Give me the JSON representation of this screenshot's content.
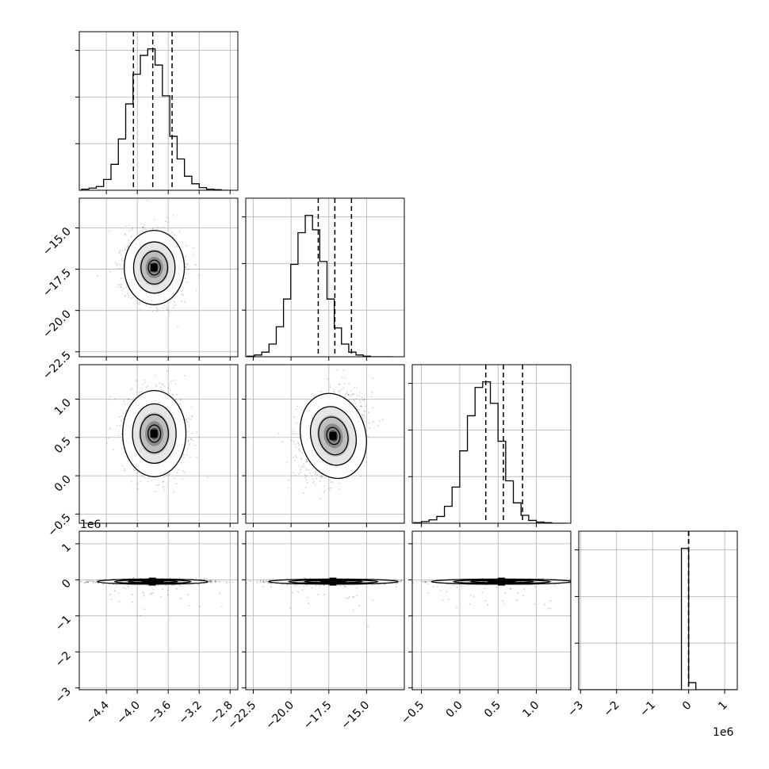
{
  "chart_data": {
    "type": "corner",
    "parameters": [
      {
        "id": "p0",
        "xlim": [
          -4.75,
          -2.7
        ],
        "ylim": [
          -22.8,
          -13.2
        ],
        "ticks": [
          -4.4,
          -4.0,
          -3.6,
          -3.2,
          -2.8
        ],
        "tick_labels": [
          "−4.4",
          "−4.0",
          "−3.6",
          "−3.2",
          "−2.8"
        ]
      },
      {
        "id": "p1",
        "xlim": [
          -23.0,
          -12.5
        ],
        "ylim": [
          -22.8,
          -13.2
        ],
        "ticks": [
          -22.5,
          -20.0,
          -17.5,
          -15.0
        ],
        "tick_labels": [
          "−22.5",
          "−20.0",
          "−17.5",
          "−15.0"
        ]
      },
      {
        "id": "p2",
        "xlim": [
          -0.62,
          1.45
        ],
        "ylim": [
          -0.62,
          1.45
        ],
        "ticks": [
          -0.5,
          0.0,
          0.5,
          1.0
        ],
        "tick_labels": [
          "−0.5",
          "0.0",
          "0.5",
          "1.0"
        ]
      },
      {
        "id": "p3",
        "xlim": [
          -3.05,
          1.35
        ],
        "ylim": [
          -3.05,
          1.35
        ],
        "ticks": [
          -3,
          -2,
          -1,
          0,
          1
        ],
        "tick_labels": [
          "−3",
          "−2",
          "−1",
          "0",
          "1"
        ],
        "offset_label": "1e6"
      }
    ],
    "y_axis_params": {
      "row1": {
        "ticks": [
          -22.5,
          -20.0,
          -17.5,
          -15.0
        ],
        "tick_labels": [
          "−22.5",
          "−20.0",
          "−17.5",
          "−15.0"
        ]
      },
      "row2": {
        "ticks": [
          -0.5,
          0.0,
          0.5,
          1.0
        ],
        "tick_labels": [
          "−0.5",
          "0.0",
          "0.5",
          "1.0"
        ]
      },
      "row3": {
        "ticks": [
          -3,
          -2,
          -1,
          0,
          1
        ],
        "tick_labels": [
          "−3",
          "−2",
          "−1",
          "0",
          "1"
        ],
        "offset_label": "1e6"
      }
    },
    "histograms": [
      {
        "param": 0,
        "edges_start": -4.72,
        "bin_width": 0.095,
        "counts": [
          2,
          4,
          7,
          20,
          48,
          95,
          160,
          215,
          250,
          262,
          232,
          175,
          100,
          58,
          26,
          12,
          5,
          2,
          1,
          0
        ],
        "quantiles": [
          -4.05,
          -3.8,
          -3.55
        ]
      },
      {
        "param": 1,
        "edges_start": -22.9,
        "bin_width": 0.48,
        "counts": [
          1,
          3,
          8,
          22,
          52,
          100,
          160,
          215,
          245,
          220,
          165,
          100,
          50,
          22,
          8,
          3,
          1,
          0,
          0,
          0
        ],
        "quantiles": [
          -18.2,
          -17.1,
          -16.0
        ]
      },
      {
        "param": 2,
        "edges_start": -0.6,
        "bin_width": 0.1,
        "counts": [
          1,
          3,
          6,
          12,
          30,
          64,
          128,
          190,
          240,
          250,
          212,
          145,
          75,
          36,
          14,
          5,
          2,
          1,
          0,
          0
        ],
        "quantiles": [
          0.34,
          0.57,
          0.82
        ]
      },
      {
        "param": 3,
        "edges_start": -3.0,
        "bin_width": 0.2,
        "counts": [
          0,
          0,
          0,
          0,
          0,
          0,
          0,
          0,
          0,
          0,
          0,
          0,
          0,
          0,
          2000,
          100,
          0,
          0,
          0,
          0,
          0,
          0
        ],
        "quantiles": [
          0.0,
          0.0,
          0.0
        ]
      }
    ],
    "pairs": [
      {
        "x": 0,
        "y": 1,
        "center": [
          -3.78,
          -17.4
        ],
        "spread": [
          0.38,
          2.2
        ],
        "rho": 0.0,
        "tilt": 0.0
      },
      {
        "x": 0,
        "y": 2,
        "center": [
          -3.78,
          0.55
        ],
        "spread": [
          0.4,
          0.55
        ],
        "rho": 0.0,
        "tilt": 0.0
      },
      {
        "x": 1,
        "y": 2,
        "center": [
          -17.2,
          0.52
        ],
        "spread": [
          2.1,
          0.55
        ],
        "rho": -0.35,
        "tilt": -0.25
      },
      {
        "x": 0,
        "y": 3,
        "center": [
          -3.8,
          -0.05
        ],
        "spread": [
          0.7,
          0.07
        ],
        "rho": 0.0,
        "tilt": 0.0
      },
      {
        "x": 1,
        "y": 3,
        "center": [
          -17.2,
          -0.05
        ],
        "spread": [
          4.2,
          0.07
        ],
        "rho": 0.0,
        "tilt": 0.0
      },
      {
        "x": 2,
        "y": 3,
        "center": [
          0.55,
          -0.05
        ],
        "spread": [
          0.9,
          0.07
        ],
        "rho": 0.0,
        "tilt": 0.0
      }
    ],
    "grid": true,
    "colors": {
      "line": "#000000",
      "grid": "#b0b0b0",
      "scatter": "#000000"
    }
  }
}
